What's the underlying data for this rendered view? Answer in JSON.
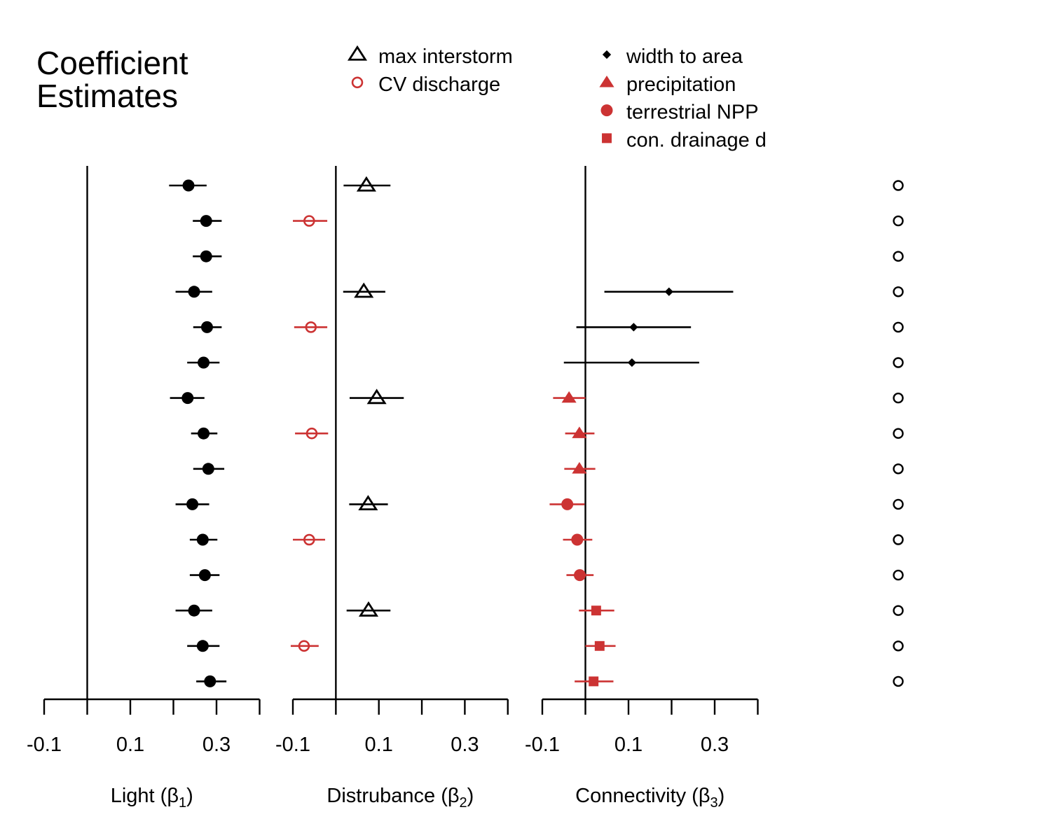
{
  "title": {
    "line1": "Coefficient",
    "line2": "Estimates"
  },
  "legend": {
    "left": [
      {
        "label": "max interstorm",
        "symbol": "open-triangle",
        "color": "#000000"
      },
      {
        "label": "CV discharge",
        "symbol": "open-circle",
        "color": "#cc3333"
      }
    ],
    "right": [
      {
        "label": "width to area",
        "symbol": "filled-diamond",
        "color": "#000000"
      },
      {
        "label": "precipitation",
        "symbol": "filled-triangle",
        "color": "#cc3333"
      },
      {
        "label": "terrestrial NPP",
        "symbol": "filled-circle",
        "color": "#cc3333"
      },
      {
        "label": "con. drainage d",
        "symbol": "filled-square",
        "color": "#cc3333"
      }
    ]
  },
  "colors": {
    "black": "#000000",
    "red": "#cc3333"
  },
  "chart_data": [
    {
      "type": "scatter",
      "panel": "light",
      "xlabel": {
        "text": "Light (",
        "symbol": "β",
        "sub": "1",
        "close": ")"
      },
      "xlim": [
        -0.1,
        0.4
      ],
      "xticks": [
        -0.1,
        0,
        0.1,
        0.2,
        0.3,
        0.4
      ],
      "xtick_labels": [
        "-0.1",
        "",
        "0.1",
        "",
        "0.3",
        ""
      ],
      "reference_line": 0,
      "rows": [
        {
          "est": 0.235,
          "lo": 0.19,
          "hi": 0.277,
          "symbol": "filled-circle",
          "color": "#000000"
        },
        {
          "est": 0.276,
          "lo": 0.245,
          "hi": 0.312,
          "symbol": "filled-circle",
          "color": "#000000"
        },
        {
          "est": 0.276,
          "lo": 0.245,
          "hi": 0.312,
          "symbol": "filled-circle",
          "color": "#000000"
        },
        {
          "est": 0.248,
          "lo": 0.205,
          "hi": 0.29,
          "symbol": "filled-circle",
          "color": "#000000"
        },
        {
          "est": 0.278,
          "lo": 0.246,
          "hi": 0.312,
          "symbol": "filled-circle",
          "color": "#000000"
        },
        {
          "est": 0.27,
          "lo": 0.232,
          "hi": 0.307,
          "symbol": "filled-circle",
          "color": "#000000"
        },
        {
          "est": 0.233,
          "lo": 0.192,
          "hi": 0.272,
          "symbol": "filled-circle",
          "color": "#000000"
        },
        {
          "est": 0.27,
          "lo": 0.241,
          "hi": 0.302,
          "symbol": "filled-circle",
          "color": "#000000"
        },
        {
          "est": 0.281,
          "lo": 0.246,
          "hi": 0.318,
          "symbol": "filled-circle",
          "color": "#000000"
        },
        {
          "est": 0.244,
          "lo": 0.205,
          "hi": 0.283,
          "symbol": "filled-circle",
          "color": "#000000"
        },
        {
          "est": 0.268,
          "lo": 0.238,
          "hi": 0.302,
          "symbol": "filled-circle",
          "color": "#000000"
        },
        {
          "est": 0.273,
          "lo": 0.238,
          "hi": 0.307,
          "symbol": "filled-circle",
          "color": "#000000"
        },
        {
          "est": 0.248,
          "lo": 0.205,
          "hi": 0.29,
          "symbol": "filled-circle",
          "color": "#000000"
        },
        {
          "est": 0.268,
          "lo": 0.232,
          "hi": 0.307,
          "symbol": "filled-circle",
          "color": "#000000"
        },
        {
          "est": 0.285,
          "lo": 0.253,
          "hi": 0.323,
          "symbol": "filled-circle",
          "color": "#000000"
        }
      ]
    },
    {
      "type": "scatter",
      "panel": "disturbance",
      "xlabel": {
        "text": "Distrubance (",
        "symbol": "β",
        "sub": "2",
        "close": ")"
      },
      "xlim": [
        -0.1,
        0.4
      ],
      "xticks": [
        -0.1,
        0,
        0.1,
        0.2,
        0.3,
        0.4
      ],
      "xtick_labels": [
        "-0.1",
        "",
        "0.1",
        "",
        "0.3",
        ""
      ],
      "reference_line": 0,
      "rows": [
        {
          "est": 0.071,
          "lo": 0.018,
          "hi": 0.127,
          "symbol": "open-triangle",
          "color": "#000000"
        },
        {
          "est": -0.062,
          "lo": -0.1,
          "hi": -0.02,
          "symbol": "open-circle",
          "color": "#cc3333"
        },
        null,
        {
          "est": 0.065,
          "lo": 0.017,
          "hi": 0.115,
          "symbol": "open-triangle",
          "color": "#000000"
        },
        {
          "est": -0.058,
          "lo": -0.097,
          "hi": -0.02,
          "symbol": "open-circle",
          "color": "#cc3333"
        },
        null,
        {
          "est": 0.095,
          "lo": 0.032,
          "hi": 0.158,
          "symbol": "open-triangle",
          "color": "#000000"
        },
        {
          "est": -0.056,
          "lo": -0.095,
          "hi": -0.018,
          "symbol": "open-circle",
          "color": "#cc3333"
        },
        null,
        {
          "est": 0.075,
          "lo": 0.031,
          "hi": 0.121,
          "symbol": "open-triangle",
          "color": "#000000"
        },
        {
          "est": -0.062,
          "lo": -0.1,
          "hi": -0.025,
          "symbol": "open-circle",
          "color": "#cc3333"
        },
        null,
        {
          "est": 0.076,
          "lo": 0.025,
          "hi": 0.127,
          "symbol": "open-triangle",
          "color": "#000000"
        },
        {
          "est": -0.074,
          "lo": -0.105,
          "hi": -0.04,
          "symbol": "open-circle",
          "color": "#cc3333"
        },
        null
      ]
    },
    {
      "type": "scatter",
      "panel": "connectivity",
      "xlabel": {
        "text": "Connectivity (",
        "symbol": "β",
        "sub": "3",
        "close": ")"
      },
      "xlim": [
        -0.1,
        0.4
      ],
      "xticks": [
        -0.1,
        0,
        0.1,
        0.2,
        0.3,
        0.4
      ],
      "xtick_labels": [
        "-0.1",
        "",
        "0.1",
        "",
        "0.3",
        ""
      ],
      "reference_line": 0,
      "rows": [
        null,
        null,
        null,
        {
          "est": 0.194,
          "lo": 0.044,
          "hi": 0.343,
          "symbol": "filled-diamond",
          "color": "#000000"
        },
        {
          "est": 0.112,
          "lo": -0.021,
          "hi": 0.245,
          "symbol": "filled-diamond",
          "color": "#000000"
        },
        {
          "est": 0.108,
          "lo": -0.05,
          "hi": 0.264,
          "symbol": "filled-diamond",
          "color": "#000000"
        },
        {
          "est": -0.038,
          "lo": -0.075,
          "hi": 0,
          "symbol": "filled-triangle",
          "color": "#cc3333"
        },
        {
          "est": -0.014,
          "lo": -0.047,
          "hi": 0.021,
          "symbol": "filled-triangle",
          "color": "#cc3333"
        },
        {
          "est": -0.014,
          "lo": -0.049,
          "hi": 0.023,
          "symbol": "filled-triangle",
          "color": "#cc3333"
        },
        {
          "est": -0.042,
          "lo": -0.083,
          "hi": -0.002,
          "symbol": "filled-circle",
          "color": "#cc3333"
        },
        {
          "est": -0.019,
          "lo": -0.052,
          "hi": 0.016,
          "symbol": "filled-circle",
          "color": "#cc3333"
        },
        {
          "est": -0.013,
          "lo": -0.044,
          "hi": 0.019,
          "symbol": "filled-circle",
          "color": "#cc3333"
        },
        {
          "est": 0.025,
          "lo": -0.015,
          "hi": 0.067,
          "symbol": "filled-square",
          "color": "#cc3333"
        },
        {
          "est": 0.033,
          "lo": 0,
          "hi": 0.07,
          "symbol": "filled-square",
          "color": "#cc3333"
        },
        {
          "est": 0.019,
          "lo": -0.025,
          "hi": 0.065,
          "symbol": "filled-square",
          "color": "#cc3333"
        }
      ]
    },
    {
      "type": "scatter",
      "panel": "row-markers",
      "rows": 15,
      "symbol": "open-circle",
      "color": "#000000"
    }
  ]
}
